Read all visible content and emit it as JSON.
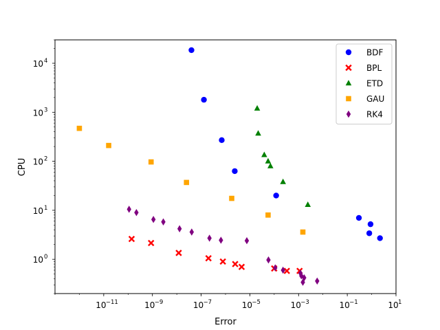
{
  "chart_data": {
    "type": "scatter",
    "title": "",
    "xlabel": "Error",
    "ylabel": "CPU",
    "xscale": "log",
    "yscale": "log",
    "xlim": [
      1e-13,
      10
    ],
    "ylim": [
      0.2,
      30000
    ],
    "grid": false,
    "legend_position": "upper right",
    "x_ticks": [
      {
        "exp": -11,
        "label": "10",
        "sup": "−11"
      },
      {
        "exp": -9,
        "label": "10",
        "sup": "−9"
      },
      {
        "exp": -7,
        "label": "10",
        "sup": "−7"
      },
      {
        "exp": -5,
        "label": "10",
        "sup": "−5"
      },
      {
        "exp": -3,
        "label": "10",
        "sup": "−3"
      },
      {
        "exp": -1,
        "label": "10",
        "sup": "−1"
      },
      {
        "exp": 1,
        "label": "10",
        "sup": "1"
      }
    ],
    "y_ticks": [
      {
        "exp": 0,
        "label": "10",
        "sup": "0"
      },
      {
        "exp": 1,
        "label": "10",
        "sup": "1"
      },
      {
        "exp": 2,
        "label": "10",
        "sup": "2"
      },
      {
        "exp": 3,
        "label": "10",
        "sup": "3"
      },
      {
        "exp": 4,
        "label": "10",
        "sup": "4"
      }
    ],
    "series": [
      {
        "name": "BDF",
        "marker": "circle",
        "color": "#0000ff",
        "points": [
          [
            4e-08,
            18500
          ],
          [
            1.3e-07,
            1800
          ],
          [
            7e-07,
            270
          ],
          [
            2.4e-06,
            63
          ],
          [
            0.00012,
            20
          ],
          [
            0.3,
            7
          ],
          [
            0.9,
            5.2
          ],
          [
            0.8,
            3.4
          ],
          [
            2.2,
            2.7
          ]
        ]
      },
      {
        "name": "BPL",
        "marker": "x",
        "color": "#ff0000",
        "points": [
          [
            1.4e-10,
            2.6
          ],
          [
            8.8e-10,
            2.15
          ],
          [
            1.2e-08,
            1.35
          ],
          [
            2e-07,
            1.05
          ],
          [
            7.8e-07,
            0.9
          ],
          [
            2.5e-06,
            0.8
          ],
          [
            4.6e-06,
            0.7
          ],
          [
            0.0001,
            0.65
          ],
          [
            0.00033,
            0.58
          ],
          [
            0.0011,
            0.58
          ]
        ]
      },
      {
        "name": "ETD",
        "marker": "triangle",
        "color": "#008000",
        "points": [
          [
            2e-05,
            1200
          ],
          [
            2.2e-05,
            370
          ],
          [
            3.9e-05,
            135
          ],
          [
            5.6e-05,
            100
          ],
          [
            7e-05,
            80
          ],
          [
            0.00023,
            38
          ],
          [
            0.0024,
            13
          ]
        ]
      },
      {
        "name": "GAU",
        "marker": "square",
        "color": "#ffa500",
        "points": [
          [
            1e-12,
            470
          ],
          [
            1.6e-11,
            210
          ],
          [
            8.8e-10,
            97
          ],
          [
            2.5e-08,
            37
          ],
          [
            1.8e-06,
            17.5
          ],
          [
            5.6e-05,
            8
          ],
          [
            0.0015,
            3.6
          ]
        ]
      },
      {
        "name": "RK4",
        "marker": "diamond",
        "color": "#800080",
        "points": [
          [
            1.1e-10,
            10.5
          ],
          [
            2.2e-10,
            9
          ],
          [
            1.1e-09,
            6.5
          ],
          [
            2.8e-09,
            5.8
          ],
          [
            1.3e-08,
            4.2
          ],
          [
            4.1e-08,
            3.6
          ],
          [
            2.2e-07,
            2.7
          ],
          [
            6.5e-07,
            2.45
          ],
          [
            7.5e-06,
            2.4
          ],
          [
            5.8e-05,
            0.97
          ],
          [
            0.00011,
            0.67
          ],
          [
            0.00023,
            0.6
          ],
          [
            0.0012,
            0.52
          ],
          [
            0.0013,
            0.46
          ],
          [
            0.0017,
            0.42
          ],
          [
            0.0015,
            0.34
          ],
          [
            0.0058,
            0.36
          ]
        ]
      }
    ]
  }
}
